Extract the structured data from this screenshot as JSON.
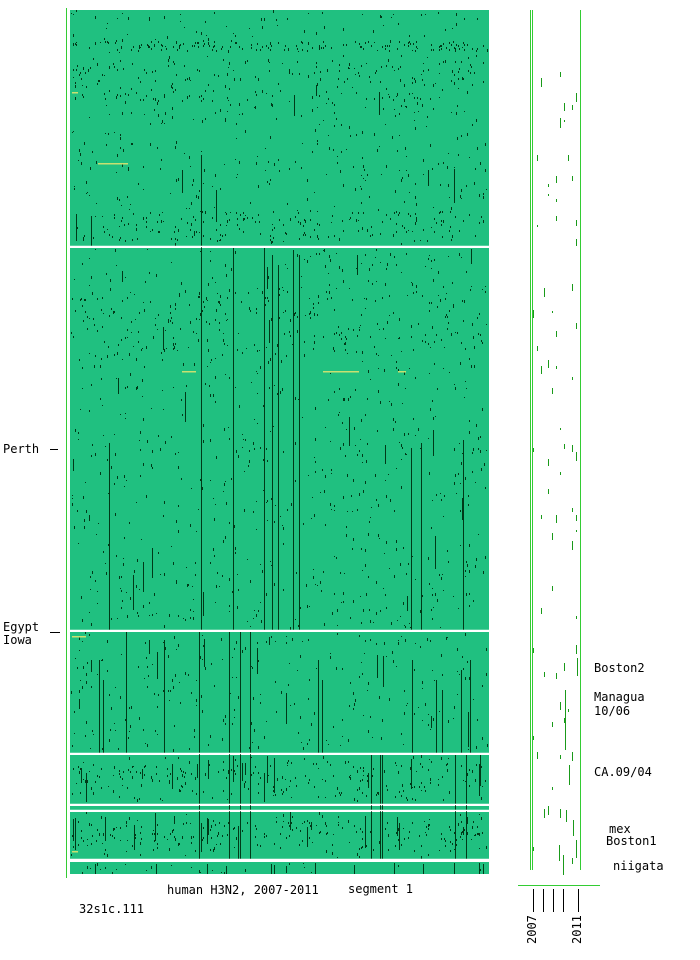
{
  "figure": {
    "caption": "human H3N2, 2007-2011",
    "segment_label": "segment 1",
    "file_id": "32s1c.111"
  },
  "colors": {
    "background": "#ffffff",
    "matrix_fill": "#20c080",
    "mutation_mark": "#003a18",
    "separator": "#ffffff",
    "frame_line": "#33cc33",
    "highlight_mark": "#c8e070",
    "timeline_mark": "#1a9a1a"
  },
  "left_labels": {
    "perth": "Perth",
    "egypt": "Egypt",
    "iowa": "Iowa"
  },
  "right_labels": {
    "boston2": "Boston2",
    "managua_line1": "Managua",
    "managua_line2": "10/06",
    "ca": "CA.09/04",
    "mex": "mex",
    "boston1": "Boston1",
    "niigata": "niigata"
  },
  "timeline": {
    "year_start": "2007",
    "year_end": "2011"
  }
}
